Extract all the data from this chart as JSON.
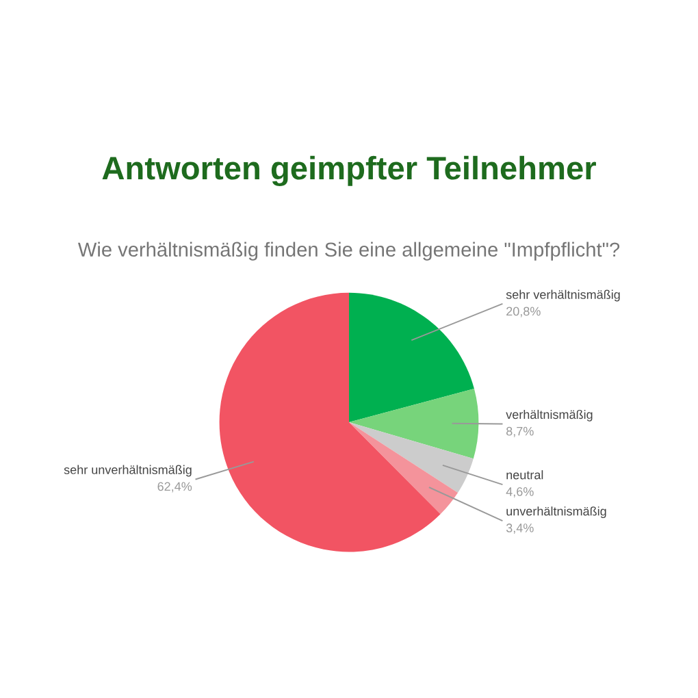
{
  "chart_data": {
    "type": "pie",
    "title": "Antworten geimpfter Teilnehmer",
    "subtitle": "Wie verhältnismäßig finden Sie eine allgemeine \"Impfpflicht\"?",
    "categories": [
      "sehr verhältnismäßig",
      "verhältnismäßig",
      "neutral",
      "unverhältnismäßig",
      "sehr unverhältnismäßig"
    ],
    "values": [
      20.8,
      8.7,
      4.6,
      3.4,
      62.4
    ],
    "value_labels": [
      "20,8%",
      "8,7%",
      "4,6%",
      "3,4%",
      "62,4%"
    ],
    "colors": [
      "#00b050",
      "#77d47b",
      "#cccccc",
      "#f4939b",
      "#f25463"
    ],
    "legend": false
  }
}
